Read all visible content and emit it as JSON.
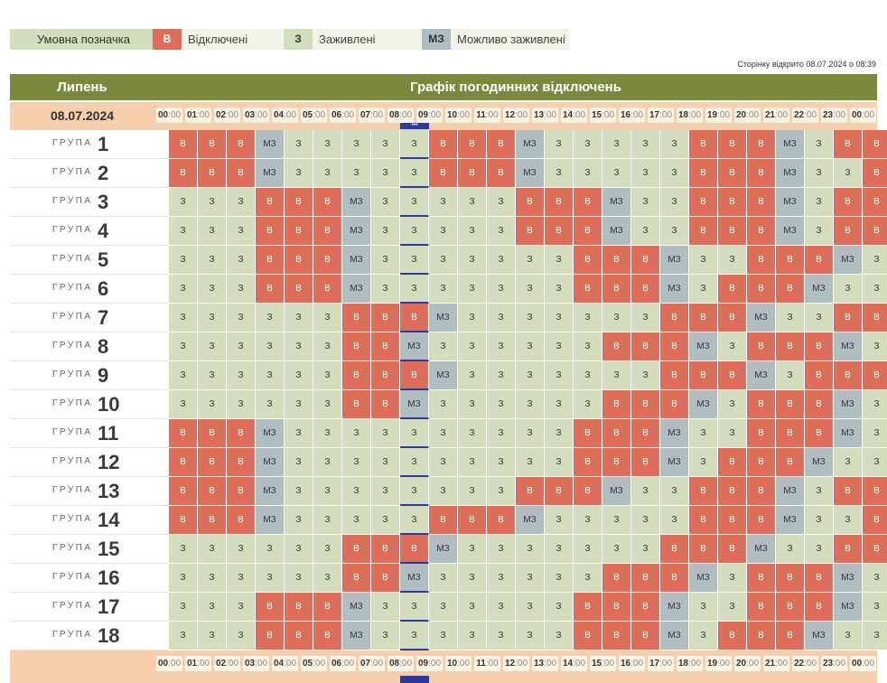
{
  "legend": {
    "title": "Умовна позначка",
    "items": [
      {
        "code": "В",
        "label": "Відключені",
        "color": "#de6e5c",
        "text_color": "#ffffff"
      },
      {
        "code": "З",
        "label": "Заживлені",
        "color": "#d2ddbb",
        "text_color": "#333333"
      },
      {
        "code": "МЗ",
        "label": "Можливо заживлені",
        "color": "#b1bcc1",
        "text_color": "#333333"
      }
    ]
  },
  "page_opened": "Сторінку відкрито 08.07.2024 о 08:39",
  "header": {
    "month": "Липень",
    "title": "Графік погодинних відключень"
  },
  "date": "08.07.2024",
  "time_ticks": [
    {
      "h": "00",
      "m": "00"
    },
    {
      "h": "01",
      "m": "00"
    },
    {
      "h": "02",
      "m": "00"
    },
    {
      "h": "03",
      "m": "00"
    },
    {
      "h": "04",
      "m": "00"
    },
    {
      "h": "05",
      "m": "00"
    },
    {
      "h": "06",
      "m": "00"
    },
    {
      "h": "07",
      "m": "00"
    },
    {
      "h": "08",
      "m": "00"
    },
    {
      "h": "09",
      "m": "00"
    },
    {
      "h": "10",
      "m": "00"
    },
    {
      "h": "11",
      "m": "00"
    },
    {
      "h": "12",
      "m": "00"
    },
    {
      "h": "13",
      "m": "00"
    },
    {
      "h": "14",
      "m": "00"
    },
    {
      "h": "15",
      "m": "00"
    },
    {
      "h": "16",
      "m": "00"
    },
    {
      "h": "17",
      "m": "00"
    },
    {
      "h": "18",
      "m": "00"
    },
    {
      "h": "19",
      "m": "00"
    },
    {
      "h": "20",
      "m": "00"
    },
    {
      "h": "21",
      "m": "00"
    },
    {
      "h": "22",
      "m": "00"
    },
    {
      "h": "23",
      "m": "00"
    },
    {
      "h": "00",
      "m": "00"
    }
  ],
  "now_marker": "•••",
  "current_hour_index": 8,
  "group_word": "ГРУПА",
  "colors": {
    "В": "#de6e5c",
    "З": "#d2ddbb",
    "МЗ": "#b1bcc1",
    "header": "#788a3d",
    "timebar": "#f6ceab",
    "now": "#2d3a9a"
  },
  "groups": [
    {
      "num": "1",
      "cells": [
        "В",
        "В",
        "В",
        "МЗ",
        "З",
        "З",
        "З",
        "З",
        "З",
        "В",
        "В",
        "В",
        "МЗ",
        "З",
        "З",
        "З",
        "З",
        "З",
        "В",
        "В",
        "В",
        "МЗ",
        "З",
        "В",
        "В"
      ]
    },
    {
      "num": "2",
      "cells": [
        "В",
        "В",
        "В",
        "МЗ",
        "З",
        "З",
        "З",
        "З",
        "З",
        "В",
        "В",
        "В",
        "МЗ",
        "З",
        "З",
        "З",
        "З",
        "З",
        "В",
        "В",
        "В",
        "МЗ",
        "З",
        "З",
        "В"
      ]
    },
    {
      "num": "3",
      "cells": [
        "З",
        "З",
        "З",
        "В",
        "В",
        "В",
        "МЗ",
        "З",
        "З",
        "З",
        "З",
        "З",
        "В",
        "В",
        "В",
        "МЗ",
        "З",
        "З",
        "В",
        "В",
        "В",
        "МЗ",
        "З",
        "В",
        "В"
      ]
    },
    {
      "num": "4",
      "cells": [
        "З",
        "З",
        "З",
        "В",
        "В",
        "В",
        "МЗ",
        "З",
        "З",
        "З",
        "З",
        "З",
        "В",
        "В",
        "В",
        "МЗ",
        "З",
        "З",
        "В",
        "В",
        "В",
        "МЗ",
        "З",
        "В",
        "В"
      ]
    },
    {
      "num": "5",
      "cells": [
        "З",
        "З",
        "З",
        "В",
        "В",
        "В",
        "МЗ",
        "З",
        "З",
        "З",
        "З",
        "З",
        "З",
        "З",
        "В",
        "В",
        "В",
        "МЗ",
        "З",
        "З",
        "В",
        "В",
        "В",
        "МЗ",
        "З"
      ]
    },
    {
      "num": "6",
      "cells": [
        "З",
        "З",
        "З",
        "В",
        "В",
        "В",
        "МЗ",
        "З",
        "З",
        "З",
        "З",
        "З",
        "З",
        "З",
        "В",
        "В",
        "В",
        "МЗ",
        "З",
        "В",
        "В",
        "В",
        "МЗ",
        "З",
        "З"
      ]
    },
    {
      "num": "7",
      "cells": [
        "З",
        "З",
        "З",
        "З",
        "З",
        "З",
        "В",
        "В",
        "В",
        "МЗ",
        "З",
        "З",
        "З",
        "З",
        "З",
        "З",
        "З",
        "В",
        "В",
        "В",
        "МЗ",
        "З",
        "З",
        "В",
        "В"
      ]
    },
    {
      "num": "8",
      "cells": [
        "З",
        "З",
        "З",
        "З",
        "З",
        "З",
        "В",
        "В",
        "МЗ",
        "З",
        "З",
        "З",
        "З",
        "З",
        "З",
        "В",
        "В",
        "В",
        "МЗ",
        "З",
        "В",
        "В",
        "В",
        "МЗ",
        "З"
      ]
    },
    {
      "num": "9",
      "cells": [
        "З",
        "З",
        "З",
        "З",
        "З",
        "З",
        "В",
        "В",
        "В",
        "МЗ",
        "З",
        "З",
        "З",
        "З",
        "З",
        "З",
        "З",
        "В",
        "В",
        "В",
        "МЗ",
        "З",
        "В",
        "В",
        "В"
      ]
    },
    {
      "num": "10",
      "cells": [
        "З",
        "З",
        "З",
        "З",
        "З",
        "З",
        "В",
        "В",
        "МЗ",
        "З",
        "З",
        "З",
        "З",
        "З",
        "З",
        "В",
        "В",
        "В",
        "МЗ",
        "З",
        "В",
        "В",
        "В",
        "МЗ",
        "З"
      ]
    },
    {
      "num": "11",
      "cells": [
        "В",
        "В",
        "В",
        "МЗ",
        "З",
        "З",
        "З",
        "З",
        "З",
        "З",
        "З",
        "З",
        "З",
        "З",
        "В",
        "В",
        "В",
        "МЗ",
        "З",
        "З",
        "В",
        "В",
        "В",
        "МЗ",
        "З"
      ]
    },
    {
      "num": "12",
      "cells": [
        "В",
        "В",
        "В",
        "МЗ",
        "З",
        "З",
        "З",
        "З",
        "З",
        "З",
        "З",
        "З",
        "З",
        "З",
        "В",
        "В",
        "В",
        "МЗ",
        "З",
        "В",
        "В",
        "В",
        "МЗ",
        "З",
        "З"
      ]
    },
    {
      "num": "13",
      "cells": [
        "В",
        "В",
        "В",
        "МЗ",
        "З",
        "З",
        "З",
        "З",
        "З",
        "З",
        "З",
        "З",
        "В",
        "В",
        "В",
        "МЗ",
        "З",
        "З",
        "В",
        "В",
        "В",
        "МЗ",
        "З",
        "В",
        "В"
      ]
    },
    {
      "num": "14",
      "cells": [
        "В",
        "В",
        "В",
        "МЗ",
        "З",
        "З",
        "З",
        "З",
        "З",
        "В",
        "В",
        "В",
        "МЗ",
        "З",
        "З",
        "З",
        "З",
        "З",
        "В",
        "В",
        "В",
        "МЗ",
        "З",
        "З",
        "В"
      ]
    },
    {
      "num": "15",
      "cells": [
        "З",
        "З",
        "З",
        "З",
        "З",
        "З",
        "В",
        "В",
        "В",
        "МЗ",
        "З",
        "З",
        "З",
        "З",
        "З",
        "З",
        "З",
        "В",
        "В",
        "В",
        "МЗ",
        "З",
        "З",
        "В",
        "В"
      ]
    },
    {
      "num": "16",
      "cells": [
        "З",
        "З",
        "З",
        "З",
        "З",
        "З",
        "В",
        "В",
        "МЗ",
        "З",
        "З",
        "З",
        "З",
        "З",
        "З",
        "В",
        "В",
        "В",
        "МЗ",
        "З",
        "В",
        "В",
        "В",
        "МЗ",
        "З"
      ]
    },
    {
      "num": "17",
      "cells": [
        "З",
        "З",
        "З",
        "В",
        "В",
        "В",
        "МЗ",
        "З",
        "З",
        "З",
        "З",
        "З",
        "З",
        "З",
        "В",
        "В",
        "В",
        "МЗ",
        "З",
        "З",
        "В",
        "В",
        "В",
        "МЗ",
        "З"
      ]
    },
    {
      "num": "18",
      "cells": [
        "З",
        "З",
        "З",
        "В",
        "В",
        "В",
        "МЗ",
        "З",
        "З",
        "З",
        "З",
        "З",
        "З",
        "З",
        "В",
        "В",
        "В",
        "МЗ",
        "З",
        "В",
        "В",
        "В",
        "МЗ",
        "З",
        "З"
      ]
    }
  ]
}
